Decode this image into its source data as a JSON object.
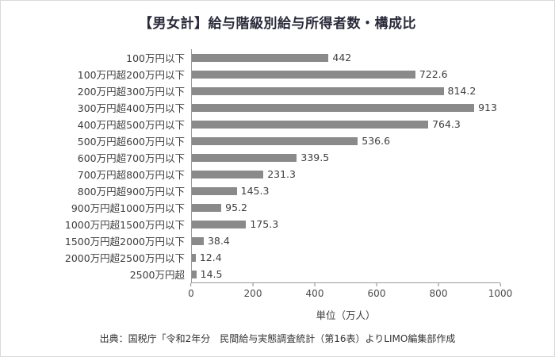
{
  "chart_data": {
    "type": "bar",
    "orientation": "horizontal",
    "title": "【男女計】給与階級別給与所得者数・構成比",
    "categories": [
      "100万円以下",
      "100万円超200万円以下",
      "200万円超300万円以下",
      "300万円超400万円以下",
      "400万円超500万円以下",
      "500万円超600万円以下",
      "600万円超700万円以下",
      "700万円超800万円以下",
      "800万円超900万円以下",
      "900万円超1000万円以下",
      "1000万円超1500万円以下",
      "1500万円超2000万円以下",
      "2000万円超2500万円以下",
      "2500万円超"
    ],
    "values": [
      442,
      722.6,
      814.2,
      913,
      764.3,
      536.6,
      339.5,
      231.3,
      145.3,
      95.2,
      175.3,
      38.4,
      12.4,
      14.5
    ],
    "xlabel": "単位（万人）",
    "xticks": [
      0,
      200,
      400,
      600,
      800,
      1000
    ],
    "xlim": [
      0,
      1000
    ],
    "grid": false,
    "legend": "none"
  },
  "colors": {
    "bar": "#8a8a8a",
    "title": "#2a2a3a",
    "axis": "#999999"
  },
  "footer": {
    "source": "出典：国税庁「令和2年分　民間給与実態調査統計（第16表）よりLIMO編集部作成"
  }
}
